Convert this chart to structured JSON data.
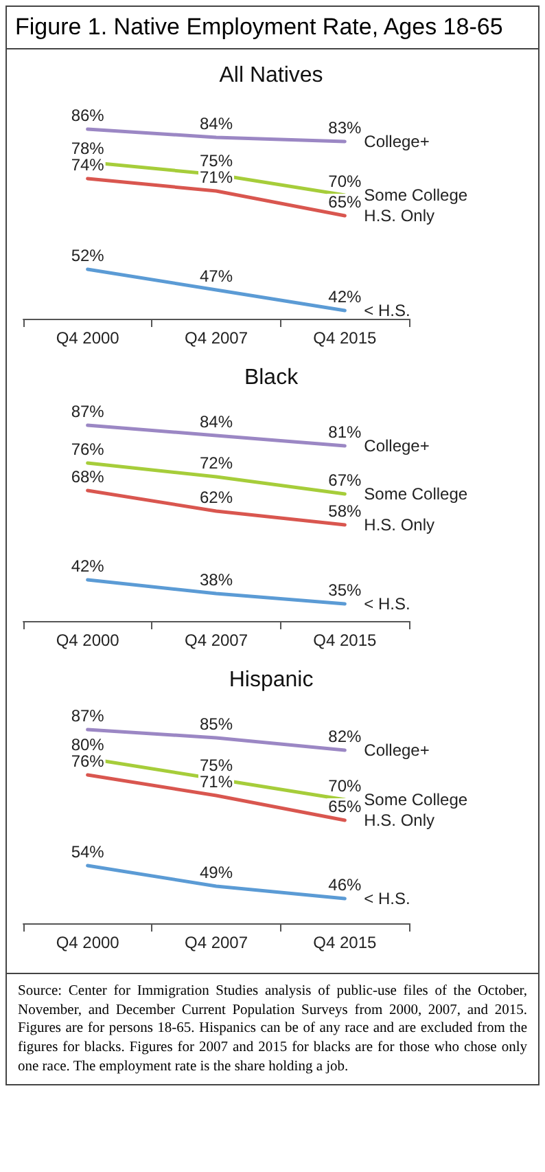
{
  "chart_data": [
    {
      "type": "line",
      "title": "Figure 1. Native Employment Rate, Ages 18-65",
      "subtitle": "All Natives",
      "categories": [
        "Q4 2000",
        "Q4 2007",
        "Q4 2015"
      ],
      "tick_labels": "x",
      "marker": "none",
      "legend": false,
      "series": [
        {
          "name": "College+",
          "color": "#9b87c4",
          "values": [
            86,
            84,
            83
          ],
          "value_labels": [
            "86%",
            "84%",
            "83%"
          ]
        },
        {
          "name": "Some College",
          "color": "#a6cd3a",
          "values": [
            78,
            75,
            70
          ],
          "value_labels": [
            "78%",
            "75%",
            "70%"
          ]
        },
        {
          "name": "H.S. Only",
          "color": "#d9564f",
          "values": [
            74,
            71,
            65
          ],
          "value_labels": [
            "74%",
            "71%",
            "65%"
          ]
        },
        {
          "name": "< H.S.",
          "color": "#5b9bd5",
          "values": [
            52,
            47,
            42
          ],
          "value_labels": [
            "52%",
            "47%",
            "42%"
          ]
        }
      ]
    },
    {
      "type": "line",
      "subtitle": "Black",
      "categories": [
        "Q4 2000",
        "Q4 2007",
        "Q4 2015"
      ],
      "tick_labels": "x",
      "marker": "none",
      "legend": false,
      "series": [
        {
          "name": "College+",
          "color": "#9b87c4",
          "values": [
            87,
            84,
            81
          ],
          "value_labels": [
            "87%",
            "84%",
            "81%"
          ]
        },
        {
          "name": "Some College",
          "color": "#a6cd3a",
          "values": [
            76,
            72,
            67
          ],
          "value_labels": [
            "76%",
            "72%",
            "67%"
          ]
        },
        {
          "name": "H.S. Only",
          "color": "#d9564f",
          "values": [
            68,
            62,
            58
          ],
          "value_labels": [
            "68%",
            "62%",
            "58%"
          ]
        },
        {
          "name": "< H.S.",
          "color": "#5b9bd5",
          "values": [
            42,
            38,
            35
          ],
          "value_labels": [
            "42%",
            "38%",
            "35%"
          ]
        }
      ]
    },
    {
      "type": "line",
      "subtitle": "Hispanic",
      "categories": [
        "Q4 2000",
        "Q4 2007",
        "Q4 2015"
      ],
      "tick_labels": "x",
      "marker": "none",
      "legend": false,
      "annotations": [
        "Source: Center for Immigration Studies analysis of public-use files of the October, November, and December Current Population Surveys from 2000, 2007, and 2015. Figures are for persons 18-65. Hispanics can be of any race and are excluded from the figures for blacks. Figures for 2007 and 2015 for blacks are for those who chose only one race. The employment rate is the share holding a job."
      ],
      "series": [
        {
          "name": "College+",
          "color": "#9b87c4",
          "values": [
            87,
            85,
            82
          ],
          "value_labels": [
            "87%",
            "85%",
            "82%"
          ]
        },
        {
          "name": "Some College",
          "color": "#a6cd3a",
          "values": [
            80,
            75,
            70
          ],
          "value_labels": [
            "80%",
            "75%",
            "70%"
          ]
        },
        {
          "name": "H.S. Only",
          "color": "#d9564f",
          "values": [
            76,
            71,
            65
          ],
          "value_labels": [
            "76%",
            "71%",
            "65%"
          ]
        },
        {
          "name": "< H.S.",
          "color": "#5b9bd5",
          "values": [
            54,
            49,
            46
          ],
          "value_labels": [
            "54%",
            "49%",
            "46%"
          ]
        }
      ]
    }
  ]
}
